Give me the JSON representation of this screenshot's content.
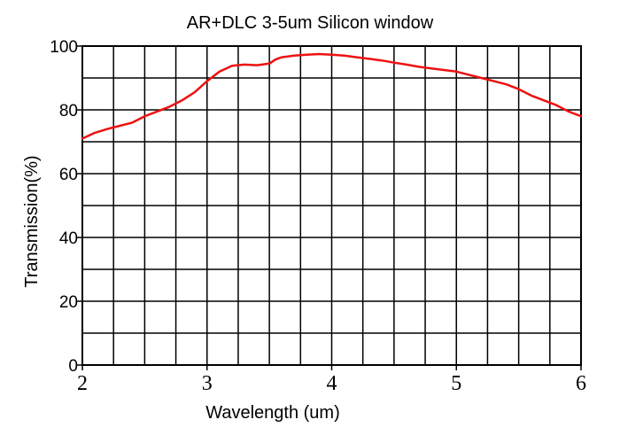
{
  "chart_data": {
    "type": "line",
    "title": "AR+DLC 3-5um Silicon window",
    "xlabel": "Wavelength (um)",
    "ylabel": "Transmission(%)",
    "xlim": [
      2,
      6
    ],
    "ylim": [
      0,
      100
    ],
    "x_ticks": [
      "2",
      "3",
      "4",
      "5",
      "6"
    ],
    "y_ticks": [
      "0",
      "20",
      "40",
      "60",
      "80",
      "100"
    ],
    "grid": true,
    "legend": "none",
    "series": [
      {
        "color": "#ee1111",
        "x": [
          2.0,
          2.1,
          2.2,
          2.3,
          2.4,
          2.5,
          2.6,
          2.7,
          2.8,
          2.9,
          3.0,
          3.1,
          3.2,
          3.3,
          3.4,
          3.5,
          3.55,
          3.6,
          3.7,
          3.8,
          3.9,
          4.0,
          4.1,
          4.2,
          4.3,
          4.4,
          4.5,
          4.6,
          4.7,
          4.8,
          4.9,
          5.0,
          5.1,
          5.2,
          5.3,
          5.4,
          5.5,
          5.6,
          5.7,
          5.8,
          5.9,
          6.0
        ],
        "y": [
          71,
          72.8,
          74,
          75,
          76,
          78,
          79.5,
          81,
          83,
          85.5,
          89,
          92,
          93.8,
          94.2,
          94,
          94.5,
          95.8,
          96.5,
          97,
          97.3,
          97.5,
          97.3,
          97,
          96.5,
          96,
          95.5,
          94.8,
          94.2,
          93.5,
          93,
          92.5,
          92,
          91,
          90,
          89,
          88,
          86.5,
          84.5,
          83,
          81.5,
          79.5,
          78
        ]
      }
    ]
  }
}
